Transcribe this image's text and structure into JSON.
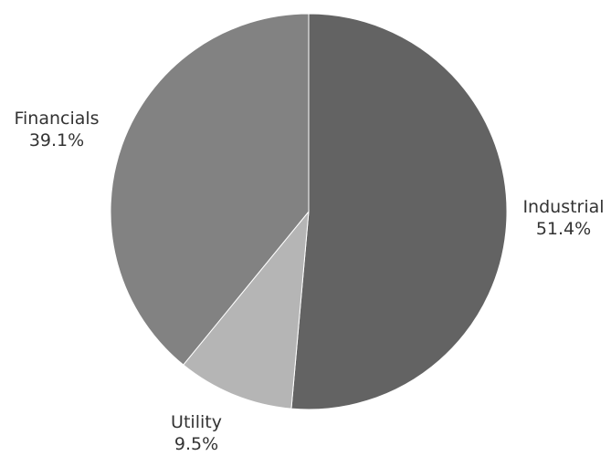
{
  "chart_data": {
    "type": "pie",
    "title": "",
    "slices": [
      {
        "label": "Industrial",
        "value": 51.4,
        "value_text": "51.4%",
        "color": "#636363"
      },
      {
        "label": "Utility",
        "value": 9.5,
        "value_text": "9.5%",
        "color": "#b5b5b5"
      },
      {
        "label": "Financials",
        "value": 39.1,
        "value_text": "39.1%",
        "color": "#828282"
      }
    ],
    "start_angle": "12 o'clock",
    "direction": "clockwise",
    "legend": "none",
    "label_placement": "outside"
  }
}
